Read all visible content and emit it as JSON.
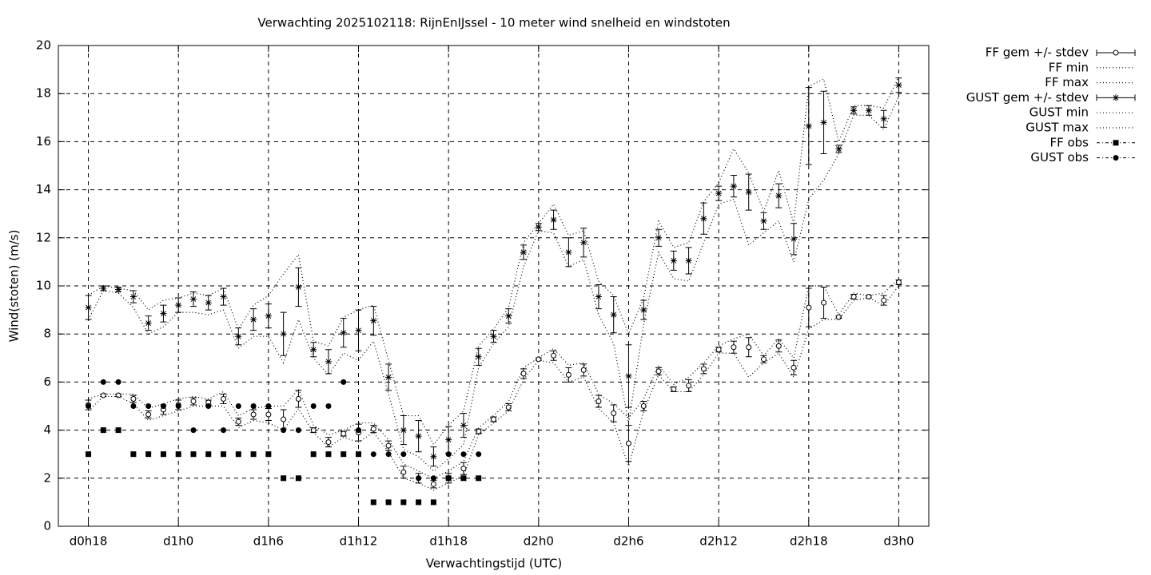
{
  "chart_data": {
    "type": "line",
    "title": "Verwachting 2025102118: RijnEnIJssel - 10 meter wind snelheid en windstoten",
    "xlabel": "Verwachtingstijd (UTC)",
    "ylabel": "Wind(stoten) (m/s)",
    "x": [
      18,
      19,
      20,
      21,
      22,
      23,
      24,
      25,
      26,
      27,
      28,
      29,
      30,
      31,
      32,
      33,
      34,
      35,
      36,
      37,
      38,
      39,
      40,
      41,
      42,
      43,
      44,
      45,
      46,
      47,
      48,
      49,
      50,
      51,
      52,
      53,
      54,
      55,
      56,
      57,
      58,
      59,
      60,
      61,
      62,
      63,
      64,
      65,
      66,
      67,
      68,
      69,
      70,
      71,
      72
    ],
    "xlim": [
      16,
      74
    ],
    "xticks": [
      {
        "value": 18,
        "label": "d0h18"
      },
      {
        "value": 24,
        "label": "d1h0"
      },
      {
        "value": 30,
        "label": "d1h6"
      },
      {
        "value": 36,
        "label": "d1h12"
      },
      {
        "value": 42,
        "label": "d1h18"
      },
      {
        "value": 48,
        "label": "d2h0"
      },
      {
        "value": 54,
        "label": "d2h6"
      },
      {
        "value": 60,
        "label": "d2h12"
      },
      {
        "value": 66,
        "label": "d2h18"
      },
      {
        "value": 72,
        "label": "d3h0"
      }
    ],
    "ylim": [
      0,
      20
    ],
    "yticks": [
      0,
      2,
      4,
      6,
      8,
      10,
      12,
      14,
      16,
      18,
      20
    ],
    "grid": true,
    "legend": "outside-right",
    "series": [
      {
        "name": "FF gem +/- stdev",
        "color": "#000000",
        "style": "errorbar",
        "marker": "circle",
        "values": [
          5.05,
          5.45,
          5.45,
          5.3,
          4.65,
          4.85,
          5.05,
          5.2,
          5.15,
          5.3,
          4.35,
          4.65,
          4.65,
          4.45,
          5.3,
          4.0,
          3.5,
          3.85,
          3.9,
          4.05,
          3.35,
          2.25,
          2.0,
          1.75,
          2.0,
          2.4,
          3.95,
          4.45,
          4.95,
          6.35,
          6.95,
          7.1,
          6.3,
          6.5,
          5.2,
          4.7,
          3.45,
          5.0,
          6.45,
          5.7,
          5.85,
          6.55,
          7.35,
          7.45,
          7.45,
          6.95,
          7.5,
          6.6,
          9.1,
          9.3,
          8.7,
          9.55,
          9.55,
          9.4,
          10.15
        ],
        "errors": [
          0.2,
          0.05,
          0.05,
          0.15,
          0.15,
          0.2,
          0.2,
          0.15,
          0.1,
          0.2,
          0.15,
          0.2,
          0.25,
          0.4,
          0.35,
          0.1,
          0.2,
          0.1,
          0.35,
          0.15,
          0.2,
          0.25,
          0.2,
          0.15,
          0.2,
          0.25,
          0.1,
          0.1,
          0.15,
          0.2,
          0.05,
          0.2,
          0.3,
          0.25,
          0.25,
          0.35,
          0.75,
          0.2,
          0.15,
          0.1,
          0.25,
          0.2,
          0.1,
          0.25,
          0.4,
          0.15,
          0.25,
          0.3,
          0.8,
          0.65,
          0.05,
          0.1,
          0.05,
          0.2,
          0.1
        ]
      },
      {
        "name": "FF min",
        "color": "#000000",
        "style": "dotted",
        "values": [
          4.8,
          5.4,
          5.4,
          5.1,
          4.4,
          4.6,
          4.8,
          5.0,
          5.0,
          5.0,
          4.1,
          4.4,
          4.3,
          4.0,
          4.9,
          3.9,
          3.3,
          3.7,
          3.5,
          3.9,
          3.1,
          2.0,
          1.8,
          1.5,
          1.8,
          2.1,
          3.8,
          4.3,
          4.8,
          6.1,
          6.9,
          6.8,
          6.0,
          6.2,
          4.9,
          4.3,
          2.5,
          4.8,
          6.3,
          5.6,
          5.6,
          6.3,
          7.2,
          7.2,
          6.2,
          6.8,
          7.2,
          6.2,
          8.2,
          8.6,
          8.6,
          9.4,
          9.5,
          9.2,
          10.0
        ]
      },
      {
        "name": "FF max",
        "color": "#000000",
        "style": "dotted",
        "values": [
          5.3,
          5.5,
          5.5,
          5.5,
          4.9,
          5.1,
          5.3,
          5.4,
          5.3,
          5.6,
          4.6,
          4.9,
          5.0,
          5.0,
          5.7,
          4.2,
          3.8,
          4.0,
          4.3,
          4.3,
          3.6,
          2.6,
          2.3,
          2.0,
          2.3,
          2.7,
          4.1,
          4.6,
          5.2,
          6.6,
          7.0,
          7.4,
          6.7,
          6.8,
          5.5,
          5.1,
          4.5,
          5.3,
          6.7,
          5.9,
          6.2,
          6.8,
          7.5,
          7.8,
          8.0,
          7.1,
          7.8,
          7.0,
          10.0,
          10.0,
          8.8,
          9.7,
          9.6,
          9.7,
          10.3
        ]
      },
      {
        "name": "GUST gem +/- stdev",
        "color": "#000000",
        "style": "errorbar",
        "marker": "star",
        "values": [
          9.1,
          9.9,
          9.85,
          9.55,
          8.45,
          8.85,
          9.2,
          9.45,
          9.3,
          9.55,
          7.9,
          8.6,
          8.75,
          8.0,
          9.95,
          7.35,
          6.85,
          8.05,
          8.15,
          8.55,
          6.2,
          4.0,
          3.75,
          2.9,
          3.6,
          4.2,
          7.05,
          7.9,
          8.75,
          11.4,
          12.45,
          12.75,
          11.4,
          11.8,
          9.55,
          8.8,
          6.25,
          9.0,
          12.0,
          11.05,
          11.05,
          12.8,
          13.85,
          14.15,
          13.9,
          12.7,
          13.75,
          11.95,
          16.65,
          16.8,
          15.7,
          17.3,
          17.3,
          16.95,
          18.35
        ],
        "errors": [
          0.5,
          0.1,
          0.1,
          0.25,
          0.3,
          0.35,
          0.3,
          0.3,
          0.3,
          0.35,
          0.35,
          0.45,
          0.5,
          0.9,
          0.8,
          0.3,
          0.5,
          0.6,
          0.85,
          0.6,
          0.55,
          0.6,
          0.65,
          0.4,
          0.55,
          0.5,
          0.35,
          0.25,
          0.3,
          0.3,
          0.15,
          0.4,
          0.6,
          0.6,
          0.5,
          0.75,
          1.3,
          0.4,
          0.35,
          0.4,
          0.55,
          0.65,
          0.3,
          0.45,
          0.75,
          0.35,
          0.5,
          0.65,
          1.6,
          1.3,
          0.15,
          0.15,
          0.2,
          0.35,
          0.3
        ]
      },
      {
        "name": "GUST min",
        "color": "#000000",
        "style": "dotted",
        "values": [
          8.6,
          9.8,
          9.7,
          9.1,
          8.0,
          8.3,
          8.9,
          8.9,
          8.8,
          9.0,
          7.4,
          7.9,
          7.9,
          6.8,
          8.6,
          7.0,
          6.3,
          7.2,
          6.9,
          7.7,
          5.5,
          3.2,
          2.9,
          2.3,
          2.8,
          3.4,
          6.6,
          7.6,
          8.3,
          10.8,
          12.3,
          12.2,
          10.8,
          11.1,
          8.8,
          7.6,
          4.3,
          8.4,
          11.4,
          10.3,
          10.2,
          11.8,
          13.4,
          13.6,
          11.7,
          12.2,
          12.7,
          11.0,
          13.6,
          14.4,
          15.5,
          17.1,
          17.1,
          16.5,
          17.9
        ]
      },
      {
        "name": "GUST max",
        "color": "#000000",
        "style": "dotted",
        "values": [
          9.6,
          10.0,
          9.9,
          9.8,
          9.0,
          9.4,
          9.5,
          9.7,
          9.6,
          9.9,
          8.2,
          9.2,
          9.6,
          10.5,
          11.3,
          7.7,
          7.5,
          8.7,
          9.0,
          9.2,
          6.9,
          4.6,
          4.6,
          3.4,
          4.2,
          4.8,
          7.5,
          8.2,
          9.1,
          11.8,
          12.6,
          13.4,
          12.1,
          12.3,
          10.2,
          9.6,
          8.0,
          9.5,
          12.7,
          11.6,
          11.8,
          13.5,
          14.3,
          15.7,
          14.7,
          13.1,
          14.8,
          12.6,
          18.3,
          18.6,
          16.0,
          17.5,
          17.5,
          17.4,
          18.7
        ]
      },
      {
        "name": "FF obs",
        "color": "#000000",
        "style": "points",
        "marker": "square",
        "values": [
          3,
          4,
          4,
          3,
          3,
          3,
          3,
          3,
          3,
          3,
          3,
          3,
          3,
          2,
          2,
          3,
          3,
          3,
          3,
          1,
          1,
          1,
          1,
          1,
          2,
          2,
          2,
          null,
          null,
          null,
          null,
          null,
          null,
          null,
          null,
          null,
          null,
          null,
          null,
          null,
          null,
          null,
          null,
          null,
          null,
          null,
          null,
          null,
          null,
          null,
          null,
          null,
          null,
          null,
          null
        ]
      },
      {
        "name": "GUST obs",
        "color": "#000000",
        "style": "points",
        "marker": "dot",
        "values": [
          5,
          6,
          6,
          5,
          5,
          5,
          5,
          4,
          5,
          4,
          5,
          5,
          5,
          4,
          4,
          5,
          5,
          6,
          4,
          3,
          3,
          3,
          2,
          2,
          3,
          3,
          3,
          null,
          null,
          null,
          null,
          null,
          null,
          null,
          null,
          null,
          null,
          null,
          null,
          null,
          null,
          null,
          null,
          null,
          null,
          null,
          null,
          null,
          null,
          null,
          null,
          null,
          null,
          null,
          null
        ]
      }
    ]
  }
}
